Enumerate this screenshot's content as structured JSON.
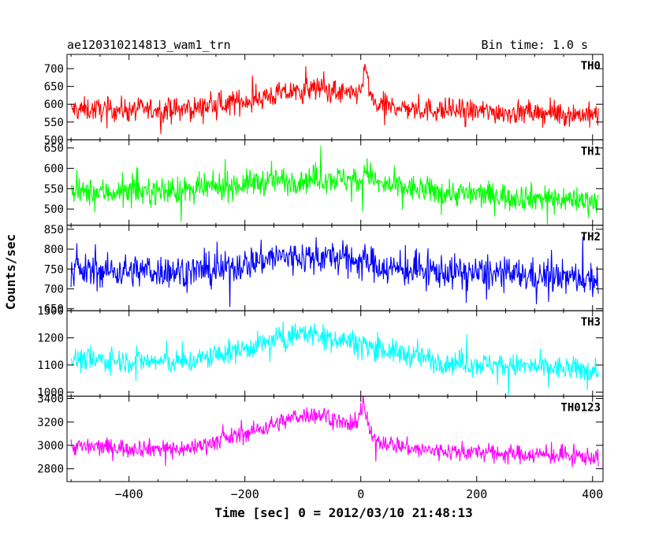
{
  "header": {
    "title": "ae120310214813_wam1_trn",
    "bin_time": "Bin time: 1.0 s"
  },
  "xlabel": "Time [sec] 0 = 2012/03/10 21:48:13",
  "ylabel": "Counts/sec",
  "chart_data": {
    "type": "line",
    "x_range": [
      -507,
      418
    ],
    "x_ticks": [
      -400,
      -200,
      0,
      200,
      400
    ],
    "x_tick_labels": [
      "−400",
      "−200",
      "0",
      "200",
      "400"
    ],
    "x_data": {
      "start": -500,
      "end": 410,
      "step": 1
    },
    "panels": [
      {
        "name": "TH0",
        "color": "#ff0000",
        "ylim": [
          500,
          740
        ],
        "y_ticks": [
          500,
          550,
          600,
          650,
          700
        ],
        "profile": [
          [
            -500,
            585
          ],
          [
            -300,
            585
          ],
          [
            -200,
            610
          ],
          [
            -100,
            640
          ],
          [
            -70,
            645
          ],
          [
            -15,
            625
          ],
          [
            0,
            640
          ],
          [
            8,
            700
          ],
          [
            20,
            600
          ],
          [
            100,
            585
          ],
          [
            410,
            570
          ]
        ],
        "noise": 30,
        "range": [
          500,
          740
        ]
      },
      {
        "name": "TH1",
        "color": "#00ff00",
        "ylim": [
          460,
          670
        ],
        "y_ticks": [
          500,
          550,
          600,
          650
        ],
        "profile": [
          [
            -500,
            540
          ],
          [
            -300,
            545
          ],
          [
            -150,
            570
          ],
          [
            -50,
            575
          ],
          [
            0,
            570
          ],
          [
            10,
            595
          ],
          [
            30,
            560
          ],
          [
            150,
            540
          ],
          [
            410,
            520
          ]
        ],
        "noise": 30,
        "range": [
          460,
          670
        ]
      },
      {
        "name": "TH2",
        "color": "#0000ff",
        "ylim": [
          645,
          860
        ],
        "y_ticks": [
          650,
          700,
          750,
          800,
          850
        ],
        "profile": [
          [
            -500,
            745
          ],
          [
            -250,
            745
          ],
          [
            -150,
            780
          ],
          [
            -50,
            780
          ],
          [
            10,
            770
          ],
          [
            50,
            750
          ],
          [
            410,
            725
          ]
        ],
        "noise": 38,
        "range": [
          645,
          860
        ]
      },
      {
        "name": "TH3",
        "color": "#00ffff",
        "ylim": [
          985,
          1300
        ],
        "y_ticks": [
          1000,
          1100,
          1200,
          1300
        ],
        "profile": [
          [
            -500,
            1120
          ],
          [
            -300,
            1110
          ],
          [
            -200,
            1160
          ],
          [
            -100,
            1220
          ],
          [
            0,
            1180
          ],
          [
            50,
            1150
          ],
          [
            150,
            1110
          ],
          [
            410,
            1080
          ]
        ],
        "noise": 40,
        "range": [
          985,
          1300
        ]
      },
      {
        "name": "TH0123",
        "color": "#ff00ff",
        "ylim": [
          2690,
          3420
        ],
        "y_ticks": [
          2800,
          3000,
          3200,
          3400
        ],
        "profile": [
          [
            -500,
            2990
          ],
          [
            -300,
            2970
          ],
          [
            -200,
            3100
          ],
          [
            -100,
            3260
          ],
          [
            -60,
            3260
          ],
          [
            -15,
            3150
          ],
          [
            5,
            3330
          ],
          [
            20,
            3050
          ],
          [
            100,
            2960
          ],
          [
            410,
            2900
          ]
        ],
        "noise": 70,
        "range": [
          2690,
          3420
        ]
      }
    ]
  }
}
